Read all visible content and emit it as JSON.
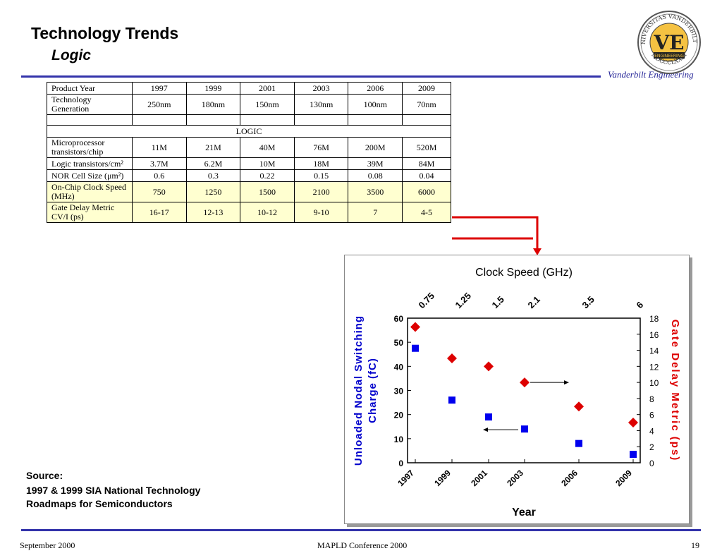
{
  "header": {
    "title": "Technology Trends",
    "subtitle": "Logic",
    "brand": "Vanderbilt Engineering",
    "logo": {
      "ring_top": "UNIVERSITAS VANDERBILTIA",
      "ring_bottom": "MDCCCLXXIII",
      "letters": "VE",
      "band": "ENGINEERING",
      "color_gold": "#f5c242",
      "color_dark": "#222222"
    }
  },
  "table": {
    "header_label": "Product Year",
    "years": [
      "1997",
      "1999",
      "2001",
      "2003",
      "2006",
      "2009"
    ],
    "tech_label": "Technology Generation",
    "tech": [
      "250nm",
      "180nm",
      "150nm",
      "130nm",
      "100nm",
      "70nm"
    ],
    "section_label": "LOGIC",
    "rows": [
      {
        "label": "Microprocessor transistors/chip",
        "values": [
          "11M",
          "21M",
          "40M",
          "76M",
          "200M",
          "520M"
        ]
      },
      {
        "label": "Logic transistors/cm²",
        "values": [
          "3.7M",
          "6.2M",
          "10M",
          "18M",
          "39M",
          "84M"
        ]
      },
      {
        "label": "NOR Cell Size (μm²)",
        "values": [
          "0.6",
          "0.3",
          "0.22",
          "0.15",
          "0.08",
          "0.04"
        ]
      },
      {
        "label": "On-Chip Clock Speed (MHz)",
        "values": [
          "750",
          "1250",
          "1500",
          "2100",
          "3500",
          "6000"
        ],
        "highlight": true
      },
      {
        "label": "Gate Delay Metric CV/I (ps)",
        "values": [
          "16-17",
          "12-13",
          "10-12",
          "9-10",
          "7",
          "4-5"
        ],
        "highlight": true
      }
    ],
    "highlight_color": "#ffffd0",
    "connector_color": "#dd0000"
  },
  "chart_data": {
    "type": "scatter",
    "title": "Clock Speed (GHz)",
    "top_labels": [
      "0.75",
      "1.25",
      "1.5",
      "2.1",
      "3.5",
      "6"
    ],
    "categories": [
      "1997",
      "1999",
      "2001",
      "2003",
      "2006",
      "2009"
    ],
    "xlabel": "Year",
    "ylabel_left": "Unloaded Nodal Switching Charge (fC)",
    "ylabel_right": "Gate Delay Metric (ps)",
    "ylim_left": [
      0,
      60
    ],
    "yticks_left": [
      "0",
      "10",
      "20",
      "30",
      "40",
      "50",
      "60"
    ],
    "ylim_right": [
      0,
      18
    ],
    "yticks_right": [
      "0",
      "2",
      "4",
      "6",
      "8",
      "10",
      "12",
      "14",
      "16",
      "18"
    ],
    "series": [
      {
        "marker": "square",
        "color": "#0000ee",
        "axis": "left",
        "values": [
          47.5,
          26,
          19,
          14,
          8,
          3.5
        ]
      },
      {
        "marker": "diamond",
        "color": "#dd0000",
        "axis": "right",
        "values": [
          16.9,
          13,
          12,
          10,
          7,
          5
        ]
      }
    ],
    "grid": false,
    "left_label_color": "#0000cc",
    "right_label_color": "#dd0000"
  },
  "source": {
    "heading": "Source:",
    "line1": "1997 & 1999 SIA National Technology",
    "line2": "Roadmaps for Semiconductors"
  },
  "footer": {
    "date": "September 2000",
    "conference": "MAPLD Conference 2000",
    "page": "19"
  }
}
